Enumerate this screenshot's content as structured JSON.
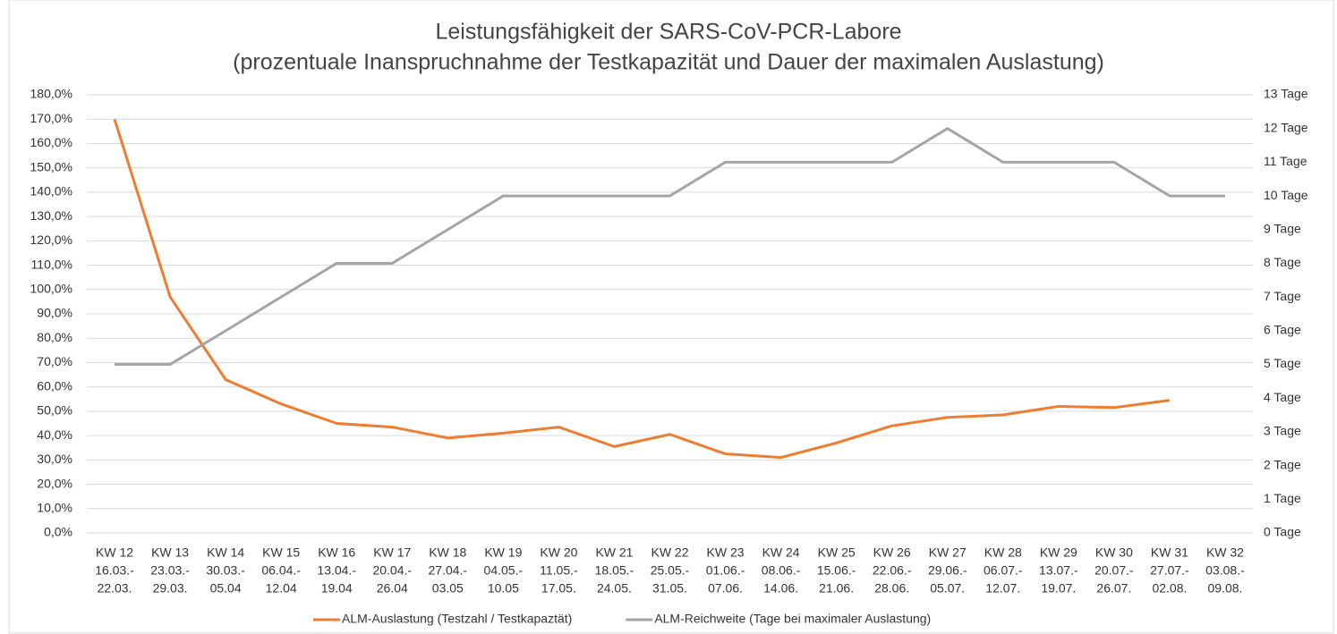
{
  "chart_data": {
    "type": "line",
    "title": "Leistungsfähigkeit der SARS-CoV-PCR-Labore",
    "subtitle": "(prozentuale Inanspruchnahme der Testkapazität und Dauer der maximalen Auslastung)",
    "categories": [
      [
        "KW 12",
        "16.03.-",
        "22.03."
      ],
      [
        "KW 13",
        "23.03.-",
        "29.03."
      ],
      [
        "KW 14",
        "30.03.-",
        "05.04"
      ],
      [
        "KW 15",
        "06.04.-",
        "12.04"
      ],
      [
        "KW 16",
        "13.04.-",
        "19.04"
      ],
      [
        "KW 17",
        "20.04.-",
        "26.04"
      ],
      [
        "KW 18",
        "27.04.-",
        "03.05"
      ],
      [
        "KW 19",
        "04.05.-",
        "10.05"
      ],
      [
        "KW 20",
        "11.05.-",
        "17.05."
      ],
      [
        "KW 21",
        "18.05.-",
        "24.05."
      ],
      [
        "KW 22",
        "25.05.-",
        "31.05."
      ],
      [
        "KW 23",
        "01.06.-",
        "07.06."
      ],
      [
        "KW 24",
        "08.06.-",
        "14.06."
      ],
      [
        "KW 25",
        "15.06.-",
        "21.06."
      ],
      [
        "KW 26",
        "22.06.-",
        "28.06."
      ],
      [
        "KW 27",
        "29.06.-",
        "05.07."
      ],
      [
        "KW 28",
        "06.07.-",
        "12.07."
      ],
      [
        "KW 29",
        "13.07.-",
        "19.07."
      ],
      [
        "KW 30",
        "20.07.-",
        "26.07."
      ],
      [
        "KW 31",
        "27.07.-",
        "02.08."
      ],
      [
        "KW 32",
        "03.08.-",
        "09.08."
      ]
    ],
    "series": [
      {
        "name": "ALM-Auslastung (Testzahl / Testkapaztät)",
        "color": "#ed7d31",
        "values": [
          170,
          97,
          63,
          53,
          45,
          43.5,
          39,
          41,
          43.5,
          35.5,
          40.5,
          32.5,
          31,
          37,
          44,
          47.5,
          48.5,
          52,
          51.5,
          54.5,
          null
        ]
      },
      {
        "name": "ALM-Reichweite (Tage bei maximaler Auslastung)",
        "color": "#a5a5a5",
        "axis": "y2",
        "values": [
          5,
          5,
          6,
          7,
          8,
          8,
          9,
          10,
          10,
          10,
          10,
          11,
          11,
          11,
          11,
          12,
          11,
          11,
          11,
          10,
          10
        ]
      }
    ],
    "ylim": [
      0,
      180
    ],
    "yticks": [
      {
        "value": 0,
        "label": "0,0%"
      },
      {
        "value": 10,
        "label": "10,0%"
      },
      {
        "value": 20,
        "label": "20,0%"
      },
      {
        "value": 30,
        "label": "30,0%"
      },
      {
        "value": 40,
        "label": "40,0%"
      },
      {
        "value": 50,
        "label": "50,0%"
      },
      {
        "value": 60,
        "label": "60,0%"
      },
      {
        "value": 70,
        "label": "70,0%"
      },
      {
        "value": 80,
        "label": "80,0%"
      },
      {
        "value": 90,
        "label": "90,0%"
      },
      {
        "value": 100,
        "label": "100,0%"
      },
      {
        "value": 110,
        "label": "110,0%"
      },
      {
        "value": 120,
        "label": "120,0%"
      },
      {
        "value": 130,
        "label": "130,0%"
      },
      {
        "value": 140,
        "label": "140,0%"
      },
      {
        "value": 150,
        "label": "150,0%"
      },
      {
        "value": 160,
        "label": "160,0%"
      },
      {
        "value": 170,
        "label": "170,0%"
      },
      {
        "value": 180,
        "label": "180,0%"
      }
    ],
    "y2lim": [
      0,
      13
    ],
    "y2ticks": [
      {
        "value": 0,
        "label": "0 Tage"
      },
      {
        "value": 1,
        "label": "1 Tage"
      },
      {
        "value": 2,
        "label": "2 Tage"
      },
      {
        "value": 3,
        "label": "3 Tage"
      },
      {
        "value": 4,
        "label": "4 Tage"
      },
      {
        "value": 5,
        "label": "5 Tage"
      },
      {
        "value": 6,
        "label": "6 Tage"
      },
      {
        "value": 7,
        "label": "7 Tage"
      },
      {
        "value": 8,
        "label": "8 Tage"
      },
      {
        "value": 9,
        "label": "9 Tage"
      },
      {
        "value": 10,
        "label": "10 Tage"
      },
      {
        "value": 11,
        "label": "11 Tage"
      },
      {
        "value": 12,
        "label": "12 Tage"
      },
      {
        "value": 13,
        "label": "13 Tage"
      }
    ],
    "grid": true,
    "legend": "bottom"
  }
}
